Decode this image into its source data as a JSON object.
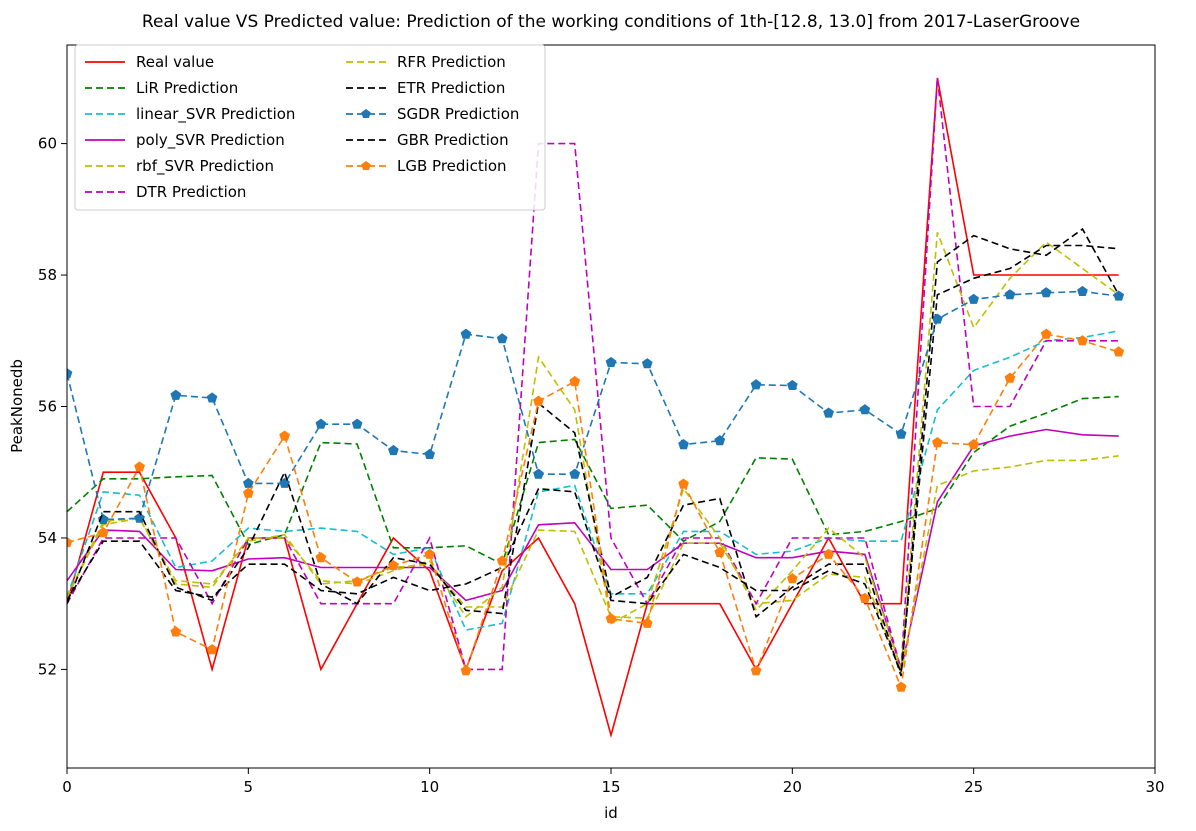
{
  "chart_data": {
    "type": "line",
    "title": "Real value VS Predicted value: Prediction of the working conditions of 1th-[12.8, 13.0] from 2017-LaserGroove",
    "xlabel": "id",
    "ylabel": "PeakNonedb",
    "xlim": [
      0,
      30
    ],
    "ylim": [
      50.5,
      61.5
    ],
    "xticks": [
      0,
      5,
      10,
      15,
      20,
      25,
      30
    ],
    "yticks": [
      52,
      54,
      56,
      58,
      60
    ],
    "legend_position": "top-left",
    "x": [
      0,
      1,
      2,
      3,
      4,
      5,
      6,
      7,
      8,
      9,
      10,
      11,
      12,
      13,
      14,
      15,
      16,
      17,
      18,
      19,
      20,
      21,
      22,
      23,
      24,
      25,
      26,
      27,
      28,
      29
    ],
    "series": [
      {
        "name": "Real value",
        "color": "#ff0000",
        "style": "solid",
        "marker": "none",
        "values": [
          53.0,
          55.0,
          55.0,
          54.0,
          52.0,
          54.0,
          54.0,
          52.0,
          53.0,
          54.0,
          53.5,
          52.0,
          53.5,
          54.0,
          53.0,
          51.0,
          53.0,
          53.0,
          53.0,
          52.0,
          53.0,
          54.0,
          53.0,
          53.0,
          61.0,
          58.0,
          58.0,
          58.0,
          58.0,
          58.0
        ]
      },
      {
        "name": "LiR Prediction",
        "color": "#008000",
        "style": "dashed",
        "marker": "none",
        "values": [
          54.4,
          54.9,
          54.9,
          54.93,
          54.95,
          53.9,
          54.05,
          55.45,
          55.43,
          53.85,
          53.85,
          53.88,
          53.6,
          55.45,
          55.5,
          54.45,
          54.5,
          53.95,
          54.25,
          55.22,
          55.2,
          54.05,
          54.1,
          54.25,
          54.45,
          55.3,
          55.7,
          55.9,
          56.12,
          56.15
        ]
      },
      {
        "name": "linear_SVR Prediction",
        "color": "#17becf",
        "style": "dashed",
        "marker": "none",
        "values": [
          53.1,
          54.7,
          54.65,
          53.55,
          53.65,
          54.15,
          54.1,
          54.15,
          54.1,
          53.75,
          53.85,
          52.6,
          52.7,
          54.7,
          54.8,
          53.15,
          53.15,
          54.1,
          54.1,
          53.75,
          53.8,
          54.0,
          53.95,
          53.95,
          55.95,
          56.55,
          56.75,
          57.0,
          57.05,
          57.15
        ]
      },
      {
        "name": "poly_SVR Prediction",
        "color": "#c000c0",
        "style": "solid",
        "marker": "none",
        "values": [
          53.35,
          54.12,
          54.1,
          53.52,
          53.5,
          53.68,
          53.7,
          53.55,
          53.55,
          53.55,
          53.55,
          53.05,
          53.2,
          54.2,
          54.23,
          53.52,
          53.52,
          53.92,
          53.92,
          53.7,
          53.7,
          53.8,
          53.75,
          52.0,
          54.55,
          55.4,
          55.55,
          55.65,
          55.57,
          55.55
        ]
      },
      {
        "name": "rbf_SVR Prediction",
        "color": "#bfbf00",
        "style": "dashed",
        "marker": "none",
        "values": [
          53.1,
          54.25,
          54.3,
          53.35,
          53.3,
          53.95,
          54.05,
          53.3,
          53.35,
          53.55,
          53.6,
          52.95,
          52.95,
          54.12,
          54.1,
          52.8,
          52.78,
          53.92,
          53.92,
          53.0,
          53.05,
          53.45,
          53.4,
          51.95,
          54.8,
          55.02,
          55.08,
          55.18,
          55.18,
          55.25
        ]
      },
      {
        "name": "DTR Prediction",
        "color": "#c000c0",
        "style": "dashed",
        "marker": "none",
        "values": [
          53.0,
          54.0,
          54.0,
          54.0,
          53.0,
          54.0,
          54.0,
          53.0,
          53.0,
          53.0,
          54.0,
          52.0,
          52.0,
          60.0,
          60.0,
          54.0,
          53.0,
          54.0,
          54.0,
          53.0,
          54.0,
          54.0,
          54.0,
          52.0,
          61.0,
          56.0,
          56.0,
          57.0,
          57.0,
          57.0
        ]
      },
      {
        "name": "RFR Prediction",
        "color": "#bfbf00",
        "style": "dashed",
        "marker": "none",
        "values": [
          53.1,
          54.2,
          54.3,
          53.3,
          53.25,
          54.0,
          54.0,
          53.35,
          53.3,
          53.5,
          53.65,
          52.8,
          53.25,
          56.75,
          55.95,
          52.7,
          53.0,
          54.75,
          54.0,
          52.9,
          53.5,
          54.15,
          53.7,
          52.0,
          58.65,
          57.2,
          57.95,
          58.5,
          58.1,
          57.7
        ]
      },
      {
        "name": "ETR Prediction",
        "color": "#000000",
        "style": "dashed",
        "marker": "none",
        "values": [
          53.05,
          53.95,
          53.95,
          53.2,
          53.1,
          53.6,
          53.6,
          53.2,
          53.15,
          53.4,
          53.2,
          53.3,
          53.55,
          54.75,
          54.7,
          53.05,
          53.0,
          53.75,
          53.55,
          53.2,
          53.2,
          53.5,
          53.3,
          51.95,
          57.7,
          57.95,
          58.1,
          58.45,
          58.45,
          58.4
        ]
      },
      {
        "name": "SGDR Prediction",
        "color": "#1f77b4",
        "style": "dashed",
        "marker": "pentagon",
        "values": [
          56.5,
          54.28,
          54.3,
          56.17,
          56.13,
          54.83,
          54.83,
          55.73,
          55.73,
          55.33,
          55.27,
          57.1,
          57.03,
          54.97,
          54.97,
          56.67,
          56.65,
          55.42,
          55.48,
          56.33,
          56.32,
          55.9,
          55.95,
          55.58,
          57.33,
          57.63,
          57.7,
          57.73,
          57.75,
          57.68
        ]
      },
      {
        "name": "GBR Prediction",
        "color": "#000000",
        "style": "dashed",
        "marker": "none",
        "values": [
          53.0,
          54.4,
          54.4,
          53.25,
          53.05,
          53.85,
          55.0,
          53.3,
          53.0,
          53.7,
          53.6,
          52.9,
          52.85,
          56.05,
          55.6,
          53.1,
          53.4,
          54.5,
          54.6,
          52.8,
          53.25,
          53.6,
          53.6,
          51.9,
          58.2,
          58.6,
          58.4,
          58.3,
          58.7,
          57.7
        ]
      },
      {
        "name": "LGB Prediction",
        "color": "#ff7f0e",
        "style": "dashed",
        "marker": "pentagon",
        "values": [
          53.93,
          54.08,
          55.08,
          52.57,
          52.3,
          54.68,
          55.55,
          53.7,
          53.33,
          53.58,
          53.75,
          51.98,
          53.65,
          56.08,
          56.38,
          52.77,
          52.7,
          54.82,
          53.78,
          51.98,
          53.38,
          53.75,
          53.08,
          51.73,
          55.45,
          55.42,
          56.43,
          57.1,
          57.0,
          56.83
        ]
      }
    ]
  }
}
